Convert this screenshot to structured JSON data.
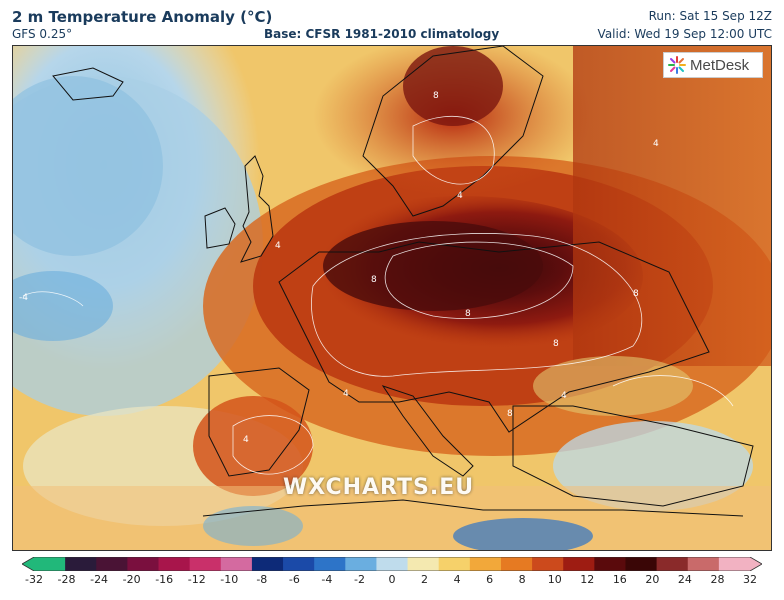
{
  "header": {
    "title": "2 m Temperature Anomaly (°C)",
    "model": "GFS 0.25°",
    "base": "Base: CFSR 1981-2010 climatology",
    "run": "Run: Sat 15 Sep 12Z",
    "valid": "Valid: Wed 19 Sep 12:00 UTC"
  },
  "branding": {
    "logo_text": "MetDesk",
    "watermark": "WXCHARTS.EU"
  },
  "contour_labels": [
    "-4",
    "4",
    "8",
    "4",
    "8",
    "8",
    "4",
    "8",
    "8",
    "4",
    "4",
    "8",
    "4"
  ],
  "colorbar": {
    "ticks": [
      "-32",
      "-28",
      "-24",
      "-20",
      "-16",
      "-12",
      "-10",
      "-8",
      "-6",
      "-4",
      "-2",
      "0",
      "2",
      "4",
      "6",
      "8",
      "10",
      "12",
      "16",
      "20",
      "24",
      "28",
      "32"
    ],
    "colors": [
      "#21b87a",
      "#2a1b3a",
      "#4a1335",
      "#7a0f3e",
      "#a8154b",
      "#c9306a",
      "#d46aa0",
      "#0d2a78",
      "#1b4aa8",
      "#2d74c8",
      "#6aaee0",
      "#bfdcec",
      "#f4e9b0",
      "#f6d16a",
      "#f2a83a",
      "#e67a22",
      "#cc4a1c",
      "#9e1c12",
      "#5a0a0c",
      "#3a0606",
      "#8a2a2a",
      "#c96a6a",
      "#f2b2c2"
    ]
  }
}
